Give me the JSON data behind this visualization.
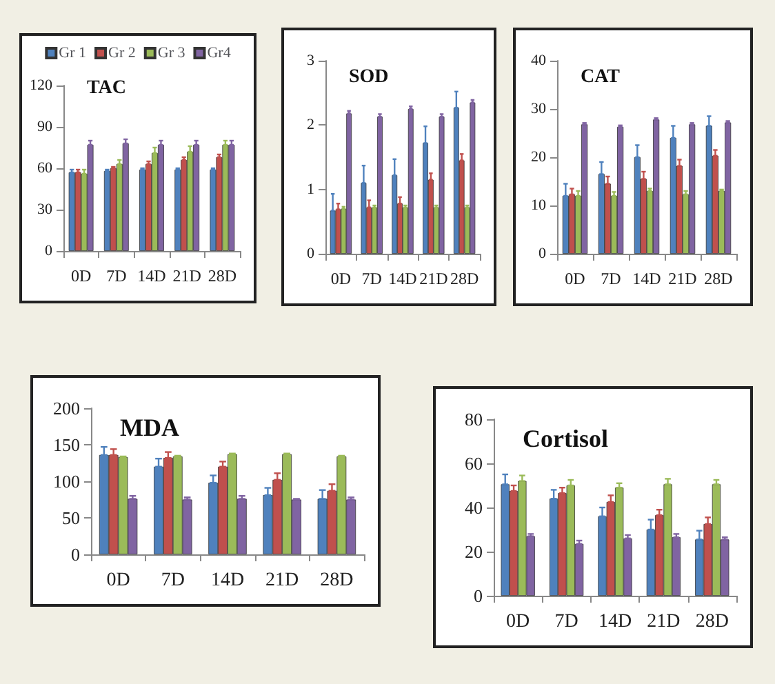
{
  "chart_data": [
    {
      "type": "bar",
      "title": "TAC",
      "categories": [
        "0D",
        "7D",
        "14D",
        "21D",
        "28D"
      ],
      "ylim": [
        0,
        120
      ],
      "yticks": [
        0,
        30,
        60,
        90,
        120
      ],
      "grid": false,
      "legend": "top",
      "series": [
        {
          "name": "Gr 1",
          "color": "#4f81bd",
          "values": [
            57,
            58,
            59,
            59,
            59
          ],
          "errors": [
            [
              57,
              59
            ],
            [
              58,
              59
            ],
            [
              59,
              60
            ],
            [
              59,
              60
            ],
            [
              59,
              60
            ]
          ]
        },
        {
          "name": "Gr 2",
          "color": "#c0504d",
          "values": [
            57,
            60,
            63,
            66,
            68
          ],
          "errors": [
            [
              57,
              59
            ],
            [
              60,
              61
            ],
            [
              63,
              65
            ],
            [
              66,
              68
            ],
            [
              68,
              70
            ]
          ]
        },
        {
          "name": "Gr 3",
          "color": "#9bbb59",
          "values": [
            56,
            63,
            71,
            72,
            77
          ],
          "errors": [
            [
              56,
              59
            ],
            [
              63,
              66
            ],
            [
              71,
              75
            ],
            [
              72,
              76
            ],
            [
              77,
              80
            ]
          ]
        },
        {
          "name": "Gr4",
          "color": "#8064a2",
          "values": [
            77,
            78,
            77,
            77,
            77
          ],
          "errors": [
            [
              77,
              80
            ],
            [
              78,
              81
            ],
            [
              77,
              80
            ],
            [
              77,
              80
            ],
            [
              77,
              80
            ]
          ]
        }
      ]
    },
    {
      "type": "bar",
      "title": "SOD",
      "categories": [
        "0D",
        "7D",
        "14D",
        "21D",
        "28D"
      ],
      "ylim": [
        0,
        3
      ],
      "yticks": [
        0,
        1,
        2,
        3
      ],
      "grid": false,
      "series": [
        {
          "color": "#4f81bd",
          "values": [
            0.67,
            1.1,
            1.22,
            1.72,
            2.27
          ],
          "errors": [
            [
              0.67,
              0.93
            ],
            [
              1.1,
              1.37
            ],
            [
              1.22,
              1.47
            ],
            [
              1.72,
              1.98
            ],
            [
              2.27,
              2.52
            ]
          ]
        },
        {
          "color": "#c0504d",
          "values": [
            0.69,
            0.72,
            0.78,
            1.15,
            1.45
          ],
          "errors": [
            [
              0.69,
              0.78
            ],
            [
              0.72,
              0.83
            ],
            [
              0.78,
              0.88
            ],
            [
              1.15,
              1.25
            ],
            [
              1.45,
              1.55
            ]
          ]
        },
        {
          "color": "#9bbb59",
          "values": [
            0.7,
            0.72,
            0.72,
            0.72,
            0.72
          ],
          "errors": [
            [
              0.7,
              0.73
            ],
            [
              0.72,
              0.75
            ],
            [
              0.72,
              0.75
            ],
            [
              0.72,
              0.75
            ],
            [
              0.72,
              0.75
            ]
          ]
        },
        {
          "color": "#8064a2",
          "values": [
            2.18,
            2.13,
            2.25,
            2.13,
            2.35
          ],
          "errors": [
            [
              2.18,
              2.22
            ],
            [
              2.13,
              2.17
            ],
            [
              2.25,
              2.29
            ],
            [
              2.13,
              2.17
            ],
            [
              2.35,
              2.39
            ]
          ]
        }
      ]
    },
    {
      "type": "bar",
      "title": "CAT",
      "categories": [
        "0D",
        "7D",
        "14D",
        "21D",
        "28D"
      ],
      "ylim": [
        0,
        40
      ],
      "yticks": [
        0,
        10,
        20,
        30,
        40
      ],
      "grid": false,
      "series": [
        {
          "color": "#4f81bd",
          "values": [
            12,
            16.5,
            20,
            24,
            26.5
          ],
          "errors": [
            [
              12,
              14.5
            ],
            [
              16.5,
              19
            ],
            [
              20,
              22.5
            ],
            [
              24,
              26.5
            ],
            [
              26.5,
              28.5
            ]
          ]
        },
        {
          "color": "#c0504d",
          "values": [
            12.3,
            14.5,
            15.5,
            18.2,
            20.3
          ],
          "errors": [
            [
              12.3,
              13.5
            ],
            [
              14.5,
              16
            ],
            [
              15.5,
              17
            ],
            [
              18.2,
              19.5
            ],
            [
              20.3,
              21.5
            ]
          ]
        },
        {
          "color": "#9bbb59",
          "values": [
            12,
            12,
            13,
            12.3,
            13
          ],
          "errors": [
            [
              12,
              13
            ],
            [
              12,
              12.8
            ],
            [
              13,
              13.5
            ],
            [
              12.3,
              13
            ],
            [
              13,
              13.3
            ]
          ]
        },
        {
          "color": "#8064a2",
          "values": [
            26.8,
            26.3,
            27.8,
            26.8,
            27.2
          ],
          "errors": [
            [
              26.8,
              27.1
            ],
            [
              26.3,
              26.6
            ],
            [
              27.8,
              28.1
            ],
            [
              26.8,
              27.1
            ],
            [
              27.2,
              27.5
            ]
          ]
        }
      ]
    },
    {
      "type": "bar",
      "title": "MDA",
      "categories": [
        "0D",
        "7D",
        "14D",
        "21D",
        "28D"
      ],
      "ylim": [
        0,
        200
      ],
      "yticks": [
        0,
        50,
        100,
        150,
        200
      ],
      "grid": false,
      "series": [
        {
          "color": "#4f81bd",
          "values": [
            136,
            120,
            98,
            81,
            76
          ],
          "errors": [
            [
              136,
              147
            ],
            [
              120,
              131
            ],
            [
              98,
              108
            ],
            [
              81,
              91
            ],
            [
              76,
              88
            ]
          ]
        },
        {
          "color": "#c0504d",
          "values": [
            136,
            132,
            120,
            102,
            87
          ],
          "errors": [
            [
              136,
              144
            ],
            [
              132,
              140
            ],
            [
              120,
              127
            ],
            [
              102,
              111
            ],
            [
              87,
              96
            ]
          ]
        },
        {
          "color": "#9bbb59",
          "values": [
            133,
            134,
            137,
            137,
            134
          ],
          "errors": [
            [
              133,
              134
            ],
            [
              134,
              135
            ],
            [
              137,
              138
            ],
            [
              137,
              138
            ],
            [
              134,
              135
            ]
          ]
        },
        {
          "color": "#8064a2",
          "values": [
            76,
            75,
            76,
            75,
            75
          ],
          "errors": [
            [
              76,
              80
            ],
            [
              75,
              78
            ],
            [
              76,
              80
            ],
            [
              75,
              76
            ],
            [
              75,
              78
            ]
          ]
        }
      ]
    },
    {
      "type": "bar",
      "title": "Cortisol",
      "categories": [
        "0D",
        "7D",
        "14D",
        "21D",
        "28D"
      ],
      "ylim": [
        0,
        80
      ],
      "yticks": [
        0,
        20,
        40,
        60,
        80
      ],
      "grid": false,
      "series": [
        {
          "color": "#4f81bd",
          "values": [
            50.5,
            44,
            36,
            30,
            25.5
          ],
          "errors": [
            [
              50.5,
              55
            ],
            [
              44,
              48
            ],
            [
              36,
              40
            ],
            [
              30,
              34.5
            ],
            [
              25.5,
              29.5
            ]
          ]
        },
        {
          "color": "#c0504d",
          "values": [
            47.5,
            46.5,
            42.5,
            36.5,
            32.5
          ],
          "errors": [
            [
              47.5,
              50
            ],
            [
              46.5,
              49
            ],
            [
              42.5,
              45.5
            ],
            [
              36.5,
              39
            ],
            [
              32.5,
              35.5
            ]
          ]
        },
        {
          "color": "#9bbb59",
          "values": [
            52,
            50,
            49,
            50.5,
            50.5
          ],
          "errors": [
            [
              52,
              54.5
            ],
            [
              50,
              52.5
            ],
            [
              49,
              51
            ],
            [
              50.5,
              53
            ],
            [
              50.5,
              52.5
            ]
          ]
        },
        {
          "color": "#8064a2",
          "values": [
            27,
            23.5,
            26,
            26.5,
            25.5
          ],
          "errors": [
            [
              27,
              28
            ],
            [
              23.5,
              25
            ],
            [
              26,
              27.5
            ],
            [
              26.5,
              28
            ],
            [
              25.5,
              26.5
            ]
          ]
        }
      ]
    }
  ]
}
